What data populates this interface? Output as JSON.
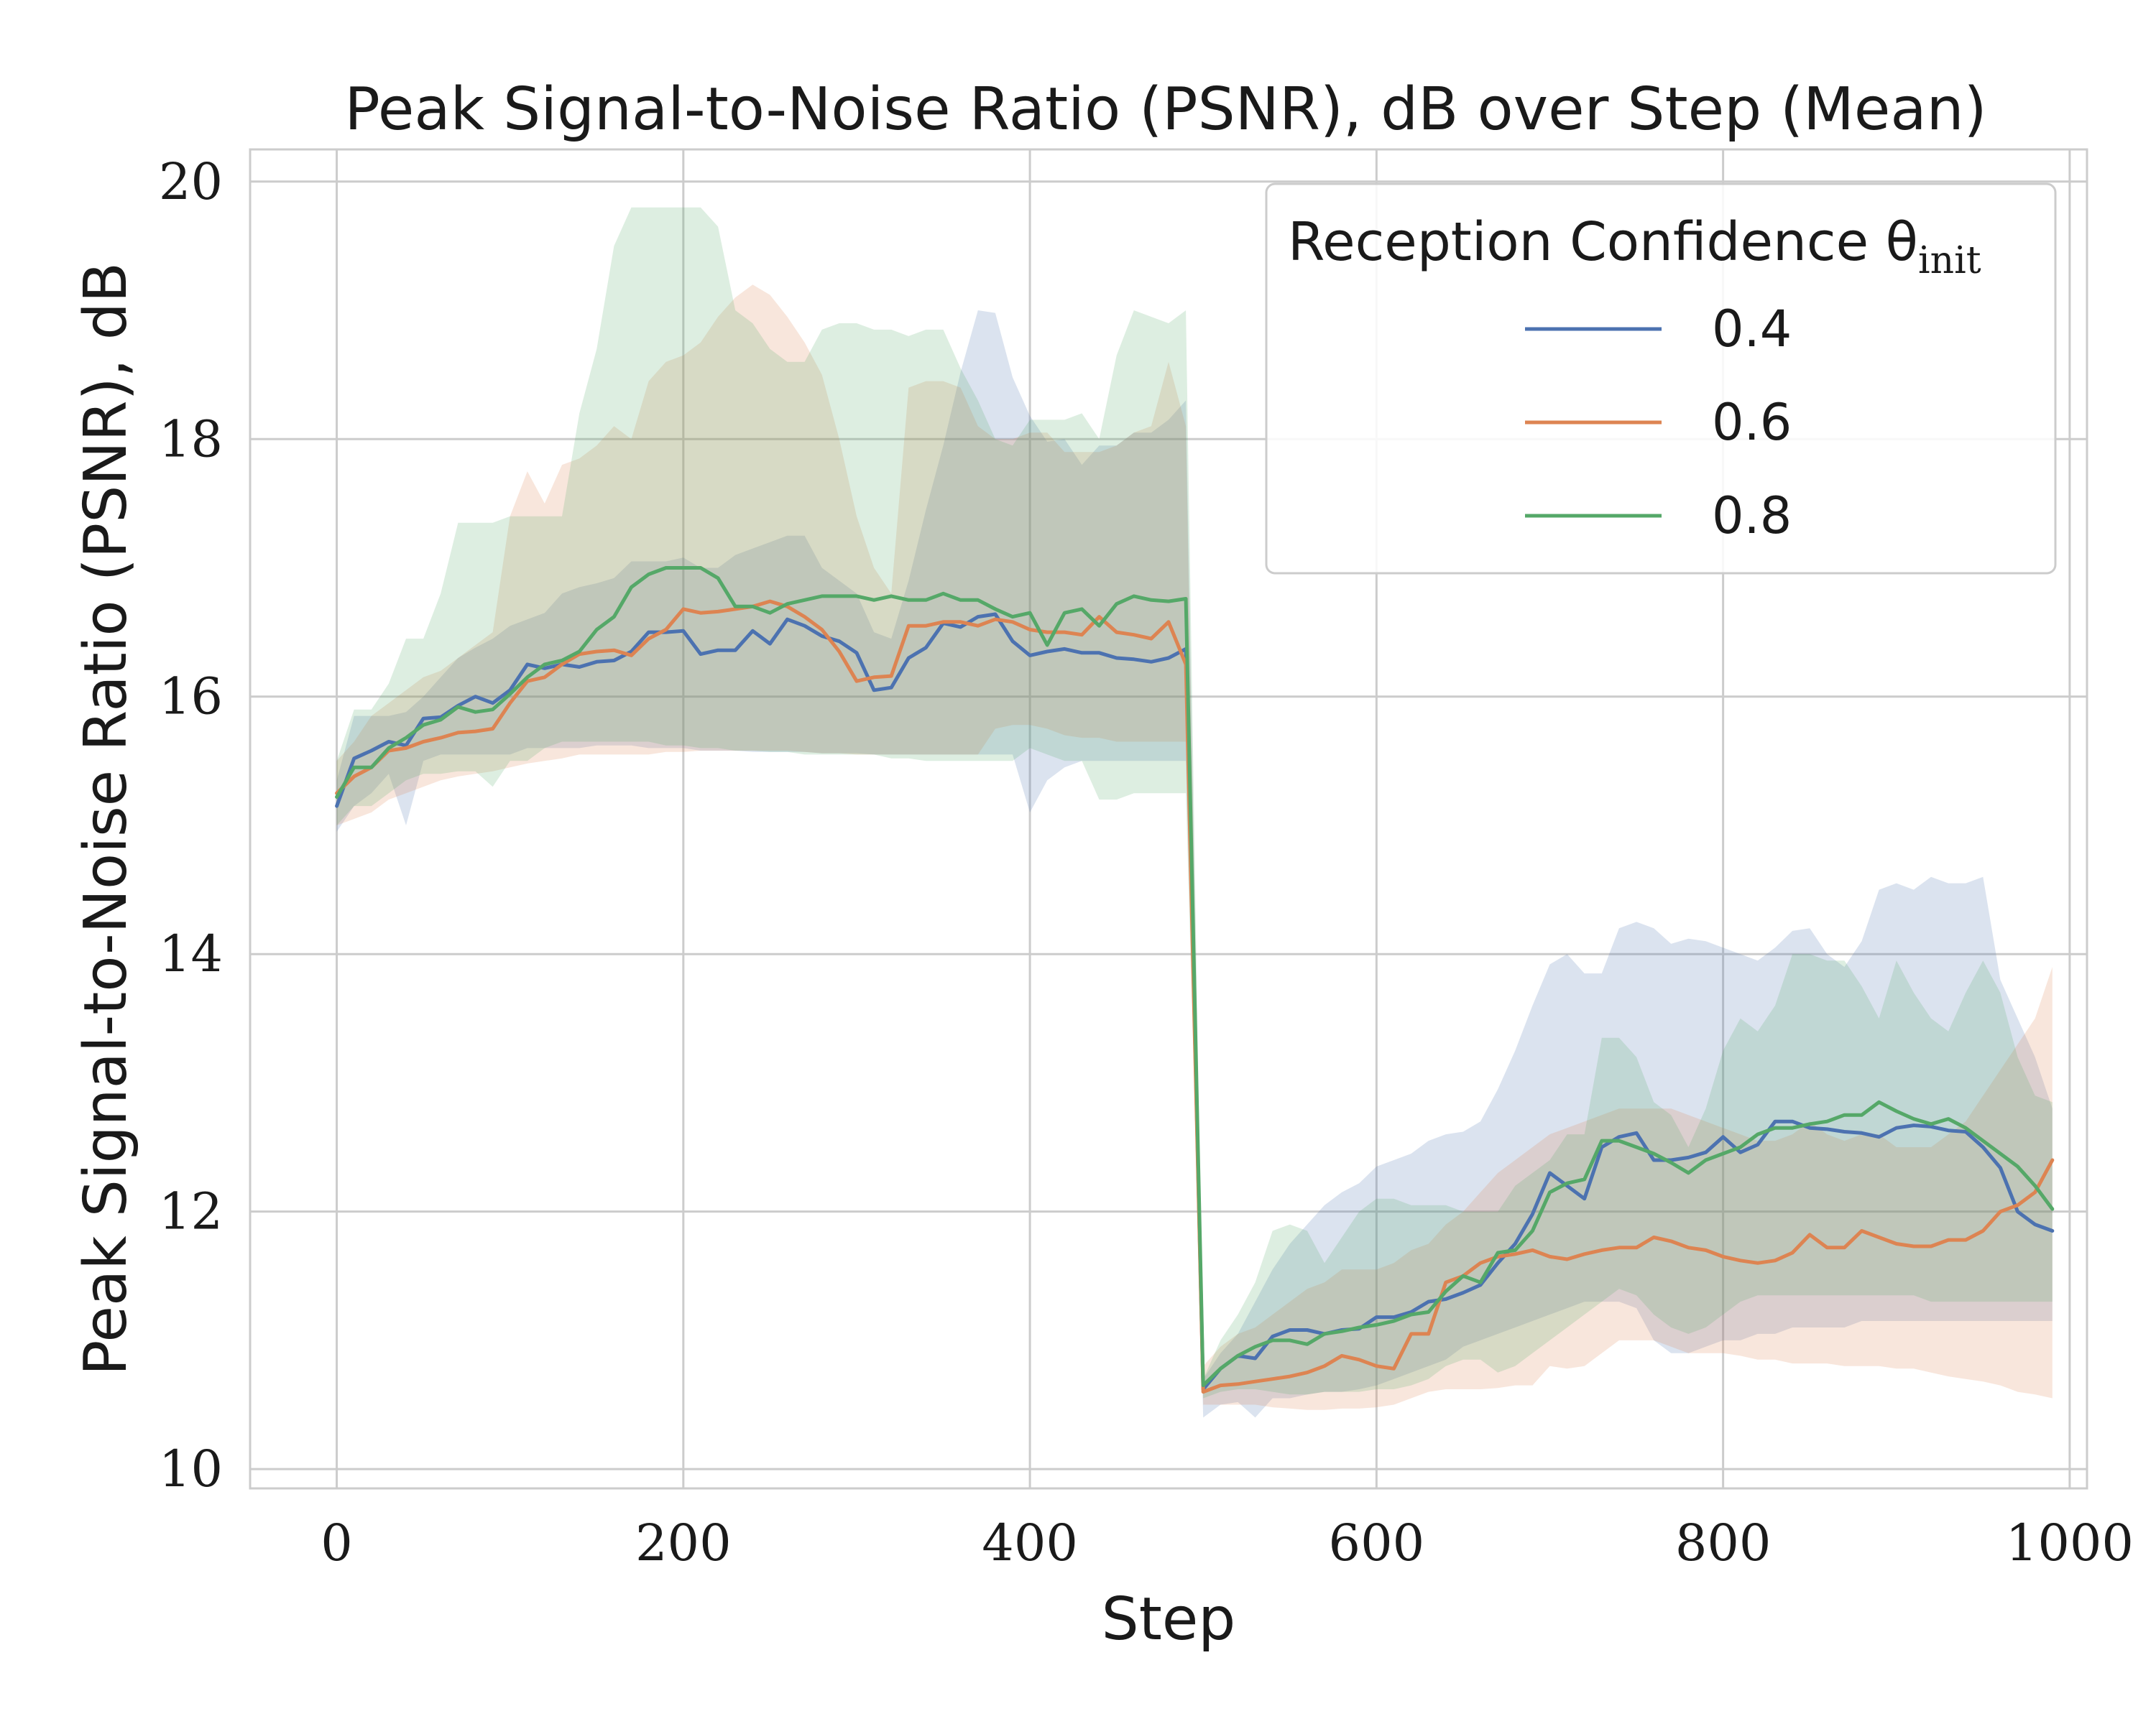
{
  "chart_data": {
    "type": "line",
    "title": "Peak Signal-to-Noise Ratio (PSNR), dB over Step (Mean)",
    "xlabel": "Step",
    "ylabel": "Peak Signal-to-Noise Ratio (PSNR), dB",
    "xlim": [
      -50,
      1010
    ],
    "ylim": [
      9.85,
      20.25
    ],
    "xticks": [
      0,
      200,
      400,
      600,
      800,
      1000
    ],
    "yticks": [
      10,
      12,
      14,
      16,
      18,
      20
    ],
    "grid": true,
    "legend": {
      "title": "Reception Confidence θ",
      "title_subscript": "init",
      "placement": "top-right"
    },
    "x": [
      0,
      10,
      20,
      30,
      40,
      50,
      60,
      70,
      80,
      90,
      100,
      110,
      120,
      130,
      140,
      150,
      160,
      170,
      180,
      190,
      200,
      210,
      220,
      230,
      240,
      250,
      260,
      270,
      280,
      290,
      300,
      310,
      320,
      330,
      340,
      350,
      360,
      370,
      380,
      390,
      400,
      410,
      420,
      430,
      440,
      450,
      460,
      470,
      480,
      490,
      500,
      510,
      520,
      530,
      540,
      550,
      560,
      570,
      580,
      590,
      600,
      610,
      620,
      630,
      640,
      650,
      660,
      670,
      680,
      690,
      700,
      710,
      720,
      730,
      740,
      750,
      760,
      770,
      780,
      790,
      800,
      810,
      820,
      830,
      840,
      850,
      860,
      870,
      880,
      890,
      900,
      910,
      920,
      930,
      940,
      950,
      960,
      970,
      980,
      990
    ],
    "series": [
      {
        "name": "0.4",
        "color": "#4c72b0",
        "mean": [
          15.15,
          15.52,
          15.58,
          15.65,
          15.62,
          15.83,
          15.84,
          15.93,
          16.0,
          15.95,
          16.05,
          16.25,
          16.22,
          16.25,
          16.23,
          16.27,
          16.28,
          16.35,
          16.5,
          16.5,
          16.51,
          16.33,
          16.36,
          16.36,
          16.51,
          16.41,
          16.6,
          16.55,
          16.47,
          16.43,
          16.34,
          16.05,
          16.07,
          16.3,
          16.38,
          16.57,
          16.54,
          16.62,
          16.64,
          16.43,
          16.32,
          16.35,
          16.37,
          16.34,
          16.34,
          16.3,
          16.29,
          16.27,
          16.3,
          16.37,
          10.62,
          10.78,
          10.88,
          10.86,
          11.03,
          11.08,
          11.08,
          11.05,
          11.08,
          11.09,
          11.18,
          11.18,
          11.22,
          11.3,
          11.32,
          11.37,
          11.43,
          11.6,
          11.75,
          11.98,
          12.3,
          12.2,
          12.1,
          12.5,
          12.58,
          12.61,
          12.4,
          12.4,
          12.42,
          12.46,
          12.58,
          12.46,
          12.52,
          12.7,
          12.7,
          12.65,
          12.64,
          12.62,
          12.61,
          12.58,
          12.65,
          12.67,
          12.66,
          12.63,
          12.62,
          12.5,
          12.34,
          12.0,
          11.9,
          11.85
        ],
        "upper": [
          15.35,
          15.85,
          15.85,
          15.85,
          15.88,
          16.0,
          16.15,
          16.3,
          16.38,
          16.45,
          16.55,
          16.6,
          16.65,
          16.8,
          16.85,
          16.88,
          16.92,
          17.05,
          17.05,
          17.05,
          17.08,
          17.0,
          17.0,
          17.1,
          17.15,
          17.2,
          17.25,
          17.25,
          17.0,
          16.9,
          16.8,
          16.5,
          16.45,
          16.9,
          17.45,
          17.95,
          18.52,
          19.0,
          18.98,
          18.48,
          18.18,
          17.98,
          18.0,
          17.8,
          17.95,
          17.95,
          18.05,
          18.05,
          18.15,
          18.3,
          10.7,
          10.9,
          11.05,
          11.3,
          11.55,
          11.75,
          11.9,
          12.05,
          12.15,
          12.22,
          12.35,
          12.4,
          12.45,
          12.55,
          12.6,
          12.62,
          12.7,
          12.95,
          13.25,
          13.6,
          13.92,
          14.0,
          13.85,
          13.85,
          14.2,
          14.25,
          14.2,
          14.08,
          14.12,
          14.1,
          14.05,
          14.0,
          13.95,
          14.05,
          14.18,
          14.2,
          14.0,
          13.9,
          14.1,
          14.5,
          14.55,
          14.5,
          14.6,
          14.55,
          14.55,
          14.6,
          13.8,
          13.5,
          13.2,
          12.8
        ],
        "lower": [
          14.95,
          15.15,
          15.25,
          15.4,
          15.0,
          15.5,
          15.55,
          15.55,
          15.55,
          15.55,
          15.55,
          15.6,
          15.6,
          15.6,
          15.6,
          15.62,
          15.62,
          15.62,
          15.6,
          15.6,
          15.6,
          15.58,
          15.58,
          15.58,
          15.57,
          15.57,
          15.57,
          15.57,
          15.56,
          15.56,
          15.56,
          15.55,
          15.55,
          15.55,
          15.55,
          15.55,
          15.55,
          15.55,
          15.55,
          15.55,
          15.1,
          15.35,
          15.45,
          15.5,
          15.5,
          15.5,
          15.5,
          15.5,
          15.5,
          15.5,
          10.4,
          10.5,
          10.52,
          10.4,
          10.55,
          10.55,
          10.58,
          10.6,
          10.6,
          10.62,
          10.65,
          10.7,
          10.75,
          10.8,
          10.85,
          10.95,
          11.0,
          11.05,
          11.1,
          11.15,
          11.2,
          11.25,
          11.3,
          11.3,
          11.3,
          11.25,
          11.0,
          10.9,
          10.9,
          10.95,
          11.0,
          11.0,
          11.05,
          11.05,
          11.1,
          11.1,
          11.1,
          11.1,
          11.15,
          11.15,
          11.15,
          11.15,
          11.15,
          11.15,
          11.15,
          11.15,
          11.15,
          11.15,
          11.15,
          11.15
        ]
      },
      {
        "name": "0.6",
        "color": "#dd8452",
        "mean": [
          15.25,
          15.38,
          15.45,
          15.58,
          15.6,
          15.65,
          15.68,
          15.72,
          15.73,
          15.75,
          15.95,
          16.12,
          16.15,
          16.25,
          16.33,
          16.35,
          16.36,
          16.32,
          16.45,
          16.52,
          16.68,
          16.65,
          16.66,
          16.68,
          16.7,
          16.74,
          16.7,
          16.62,
          16.52,
          16.35,
          16.12,
          16.15,
          16.16,
          16.55,
          16.55,
          16.58,
          16.58,
          16.55,
          16.6,
          16.58,
          16.52,
          16.5,
          16.5,
          16.48,
          16.62,
          16.5,
          16.48,
          16.45,
          16.58,
          16.25,
          10.6,
          10.65,
          10.66,
          10.68,
          10.7,
          10.72,
          10.75,
          10.8,
          10.88,
          10.85,
          10.8,
          10.78,
          11.05,
          11.05,
          11.45,
          11.5,
          11.6,
          11.65,
          11.67,
          11.7,
          11.65,
          11.63,
          11.67,
          11.7,
          11.72,
          11.72,
          11.8,
          11.77,
          11.72,
          11.7,
          11.65,
          11.62,
          11.6,
          11.62,
          11.68,
          11.82,
          11.72,
          11.72,
          11.85,
          11.8,
          11.75,
          11.73,
          11.73,
          11.78,
          11.78,
          11.85,
          12.0,
          12.05,
          12.15,
          12.4
        ],
        "upper": [
          15.5,
          15.65,
          15.85,
          15.95,
          16.05,
          16.15,
          16.2,
          16.3,
          16.4,
          16.5,
          17.4,
          17.75,
          17.5,
          17.8,
          17.85,
          17.95,
          18.1,
          18.0,
          18.45,
          18.6,
          18.65,
          18.75,
          18.95,
          19.1,
          19.2,
          19.12,
          18.95,
          18.75,
          18.5,
          18.0,
          17.4,
          17.0,
          16.8,
          18.4,
          18.45,
          18.45,
          18.4,
          18.1,
          18.0,
          18.0,
          18.05,
          18.05,
          17.9,
          17.9,
          17.9,
          17.95,
          18.05,
          18.1,
          18.6,
          18.1,
          10.8,
          10.95,
          11.05,
          11.1,
          11.2,
          11.3,
          11.4,
          11.45,
          11.55,
          11.55,
          11.55,
          11.6,
          11.7,
          11.75,
          11.9,
          12.0,
          12.15,
          12.3,
          12.4,
          12.5,
          12.6,
          12.65,
          12.7,
          12.75,
          12.8,
          12.8,
          12.8,
          12.8,
          12.75,
          12.7,
          12.65,
          12.6,
          12.55,
          12.55,
          12.6,
          12.7,
          12.6,
          12.55,
          12.6,
          12.6,
          12.5,
          12.5,
          12.5,
          12.6,
          12.7,
          12.9,
          13.1,
          13.3,
          13.5,
          13.9
        ],
        "lower": [
          15.0,
          15.05,
          15.1,
          15.2,
          15.25,
          15.3,
          15.35,
          15.38,
          15.4,
          15.42,
          15.45,
          15.48,
          15.5,
          15.52,
          15.55,
          15.55,
          15.55,
          15.55,
          15.55,
          15.57,
          15.57,
          15.58,
          15.58,
          15.58,
          15.58,
          15.58,
          15.58,
          15.57,
          15.56,
          15.56,
          15.55,
          15.55,
          15.55,
          15.55,
          15.55,
          15.55,
          15.55,
          15.55,
          15.75,
          15.78,
          15.78,
          15.75,
          15.7,
          15.68,
          15.68,
          15.65,
          15.65,
          15.65,
          15.65,
          15.65,
          10.5,
          10.5,
          10.5,
          10.5,
          10.48,
          10.47,
          10.46,
          10.46,
          10.47,
          10.47,
          10.48,
          10.5,
          10.55,
          10.6,
          10.62,
          10.62,
          10.62,
          10.63,
          10.65,
          10.65,
          10.8,
          10.78,
          10.8,
          10.9,
          11.0,
          11.0,
          11.0,
          10.95,
          10.9,
          10.9,
          10.9,
          10.88,
          10.85,
          10.85,
          10.82,
          10.82,
          10.82,
          10.8,
          10.8,
          10.8,
          10.78,
          10.78,
          10.75,
          10.72,
          10.7,
          10.68,
          10.65,
          10.6,
          10.58,
          10.55
        ]
      },
      {
        "name": "0.8",
        "color": "#55a868",
        "mean": [
          15.22,
          15.45,
          15.45,
          15.6,
          15.68,
          15.78,
          15.82,
          15.92,
          15.88,
          15.9,
          16.02,
          16.15,
          16.25,
          16.28,
          16.35,
          16.52,
          16.62,
          16.85,
          16.95,
          17.0,
          17.0,
          17.0,
          16.92,
          16.7,
          16.7,
          16.65,
          16.72,
          16.75,
          16.78,
          16.78,
          16.78,
          16.75,
          16.78,
          16.75,
          16.75,
          16.8,
          16.75,
          16.75,
          16.68,
          16.62,
          16.65,
          16.4,
          16.65,
          16.68,
          16.55,
          16.72,
          16.78,
          16.75,
          16.74,
          16.76,
          10.65,
          10.78,
          10.88,
          10.95,
          11.0,
          11.0,
          10.97,
          11.05,
          11.07,
          11.1,
          11.12,
          11.15,
          11.2,
          11.22,
          11.38,
          11.5,
          11.45,
          11.68,
          11.7,
          11.85,
          12.15,
          12.22,
          12.25,
          12.55,
          12.55,
          12.5,
          12.45,
          12.38,
          12.3,
          12.4,
          12.45,
          12.5,
          12.6,
          12.65,
          12.65,
          12.68,
          12.7,
          12.75,
          12.75,
          12.85,
          12.78,
          12.72,
          12.68,
          12.72,
          12.65,
          12.55,
          12.45,
          12.35,
          12.2,
          12.02
        ],
        "upper": [
          15.5,
          15.9,
          15.9,
          16.1,
          16.45,
          16.45,
          16.8,
          17.35,
          17.35,
          17.35,
          17.4,
          17.4,
          17.4,
          17.4,
          18.2,
          18.7,
          19.5,
          19.8,
          19.8,
          19.8,
          19.8,
          19.8,
          19.65,
          19.0,
          18.9,
          18.7,
          18.6,
          18.6,
          18.85,
          18.9,
          18.9,
          18.85,
          18.85,
          18.8,
          18.85,
          18.85,
          18.55,
          18.3,
          18.0,
          17.95,
          18.15,
          18.15,
          18.15,
          18.2,
          18.0,
          18.65,
          19.0,
          18.95,
          18.9,
          19.0,
          10.7,
          11.0,
          11.2,
          11.45,
          11.85,
          11.9,
          11.85,
          11.6,
          11.8,
          12.0,
          12.1,
          12.1,
          12.05,
          12.05,
          12.05,
          12.0,
          12.0,
          12.0,
          12.2,
          12.3,
          12.4,
          12.6,
          12.6,
          13.35,
          13.35,
          13.2,
          12.85,
          12.75,
          12.5,
          12.8,
          13.25,
          13.5,
          13.4,
          13.6,
          14.0,
          14.0,
          13.95,
          13.95,
          13.75,
          13.5,
          13.95,
          13.7,
          13.5,
          13.4,
          13.7,
          13.95,
          13.7,
          13.2,
          12.9,
          12.85
        ],
        "lower": [
          15.0,
          15.15,
          15.15,
          15.25,
          15.35,
          15.4,
          15.4,
          15.42,
          15.42,
          15.3,
          15.5,
          15.5,
          15.6,
          15.65,
          15.65,
          15.65,
          15.65,
          15.65,
          15.65,
          15.62,
          15.62,
          15.6,
          15.6,
          15.58,
          15.58,
          15.57,
          15.57,
          15.55,
          15.55,
          15.55,
          15.55,
          15.55,
          15.52,
          15.52,
          15.5,
          15.5,
          15.5,
          15.5,
          15.5,
          15.5,
          15.6,
          15.55,
          15.5,
          15.5,
          15.2,
          15.2,
          15.25,
          15.25,
          15.25,
          15.25,
          10.55,
          10.6,
          10.62,
          10.62,
          10.6,
          10.58,
          10.58,
          10.6,
          10.6,
          10.6,
          10.62,
          10.62,
          10.65,
          10.7,
          10.8,
          10.85,
          10.85,
          10.75,
          10.8,
          10.9,
          11.0,
          11.1,
          11.2,
          11.3,
          11.4,
          11.35,
          11.2,
          11.1,
          11.05,
          11.1,
          11.2,
          11.3,
          11.35,
          11.35,
          11.35,
          11.35,
          11.35,
          11.35,
          11.35,
          11.35,
          11.35,
          11.35,
          11.3,
          11.3,
          11.3,
          11.3,
          11.3,
          11.3,
          11.3,
          11.3
        ]
      }
    ]
  }
}
